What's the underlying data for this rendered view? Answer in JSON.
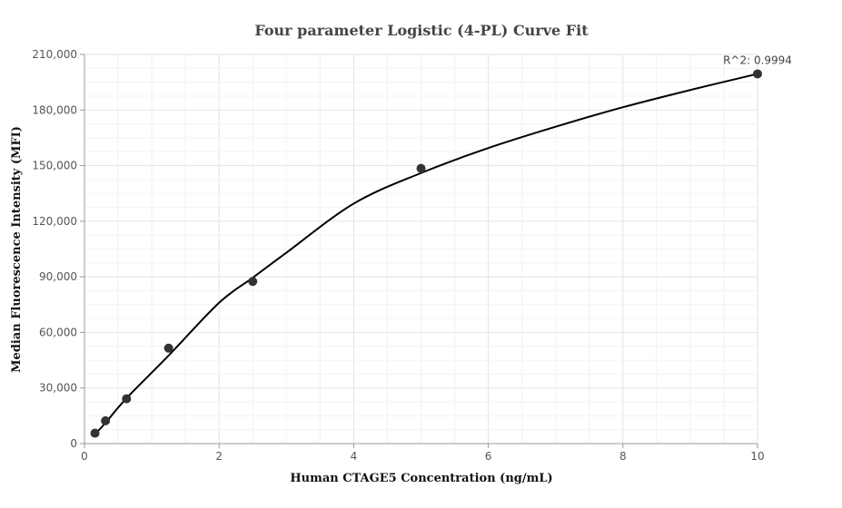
{
  "chart_data": {
    "type": "scatter",
    "title": "Four parameter Logistic (4-PL) Curve Fit",
    "xlabel": "Human CTAGE5 Concentration (ng/mL)",
    "ylabel": "Median Fluorescence Intensity (MFI)",
    "xlim": [
      0,
      10
    ],
    "ylim": [
      0,
      210000
    ],
    "x_ticks": [
      0,
      2,
      4,
      6,
      8,
      10
    ],
    "x_tick_labels": [
      "0",
      "2",
      "4",
      "6",
      "8",
      "10"
    ],
    "y_ticks": [
      0,
      30000,
      60000,
      90000,
      120000,
      150000,
      180000,
      210000
    ],
    "y_tick_labels": [
      "0",
      "30,000",
      "60,000",
      "90,000",
      "120,000",
      "150,000",
      "180,000",
      "210,000"
    ],
    "grid": true,
    "annotation": "R^2: 0.9994",
    "points": {
      "x": [
        0.156,
        0.3125,
        0.625,
        1.25,
        2.5,
        5,
        10
      ],
      "y": [
        5600,
        12300,
        24200,
        51500,
        87500,
        148500,
        199500
      ]
    },
    "fit_curve": {
      "x": [
        0.156,
        0.3125,
        0.625,
        1.25,
        2,
        2.5,
        3,
        4,
        5,
        6,
        7,
        8,
        9,
        10
      ],
      "y": [
        5000,
        11200,
        24500,
        47500,
        76000,
        89500,
        103000,
        129500,
        146000,
        159500,
        171000,
        181500,
        190800,
        199500
      ]
    },
    "colors": {
      "point": "#333333",
      "curve": "#000000",
      "grid": "#e6e6e6",
      "axis": "#999999"
    }
  }
}
